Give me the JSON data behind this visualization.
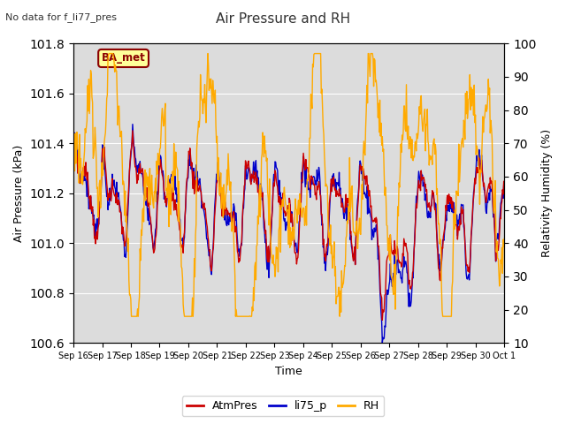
{
  "title": "Air Pressure and RH",
  "top_left_text": "No data for f_li77_pres",
  "box_label": "BA_met",
  "xlabel": "Time",
  "ylabel_left": "Air Pressure (kPa)",
  "ylabel_right": "Relativity Humidity (%)",
  "ylim_left": [
    100.6,
    101.8
  ],
  "ylim_right": [
    10,
    100
  ],
  "yticks_left": [
    100.6,
    100.8,
    101.0,
    101.2,
    101.4,
    101.6,
    101.8
  ],
  "yticks_right": [
    10,
    20,
    30,
    40,
    50,
    60,
    70,
    80,
    90,
    100
  ],
  "legend_labels": [
    "AtmPres",
    "li75_p",
    "RH"
  ],
  "legend_colors": [
    "#cc0000",
    "#0000cc",
    "#ffaa00"
  ],
  "line_colors": {
    "AtmPres": "#cc0000",
    "li75_p": "#0000cc",
    "RH": "#ffaa00"
  },
  "background_color": "#dcdcdc",
  "figure_color": "#ffffff",
  "box_facecolor": "#ffff99",
  "box_edgecolor": "#8b0000",
  "xtick_labels": [
    "Sep 16",
    "Sep 17",
    "Sep 18",
    "Sep 19",
    "Sep 20",
    "Sep 21",
    "Sep 22",
    "Sep 23",
    "Sep 24",
    "Sep 25",
    "Sep 26",
    "Sep 27",
    "Sep 28",
    "Sep 29",
    "Sep 30",
    "Oct 1"
  ],
  "n_points": 700,
  "seed": 7
}
